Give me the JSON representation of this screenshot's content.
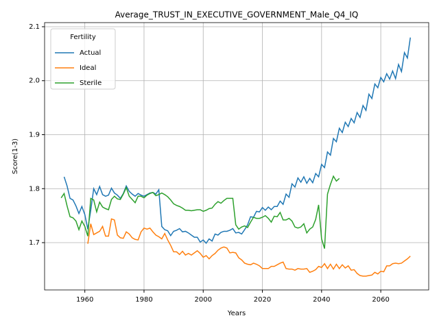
{
  "chart_data": {
    "type": "line",
    "title": "Average_TRUST_IN_EXECUTIVE_GOVERNMENT_Male_Q4_IQ",
    "x_label": "Years",
    "y_label": "Score(1-3)",
    "legend_title": "Fertility",
    "legend_loc": "upper left",
    "grid": true,
    "xlim": [
      1946.4,
      2076.2
    ],
    "ylim": [
      1.6124,
      2.1076
    ],
    "xticks": [
      1960,
      1980,
      2000,
      2020,
      2040,
      2060
    ],
    "yticks": [
      1.7,
      1.8,
      1.9,
      {
        "value": 2,
        "label": "2.0"
      },
      2.1
    ],
    "x": [
      1952,
      1953,
      1954,
      1955,
      1956,
      1957,
      1958,
      1959,
      1960,
      1961,
      1962,
      1963,
      1964,
      1965,
      1966,
      1967,
      1968,
      1969,
      1970,
      1971,
      1972,
      1973,
      1974,
      1975,
      1976,
      1977,
      1978,
      1979,
      1980,
      1981,
      1982,
      1983,
      1984,
      1985,
      1986,
      1987,
      1988,
      1989,
      1990,
      1991,
      1992,
      1993,
      1994,
      1995,
      1996,
      1997,
      1998,
      1999,
      2000,
      2001,
      2002,
      2003,
      2004,
      2005,
      2006,
      2007,
      2008,
      2009,
      2010,
      2011,
      2012,
      2013,
      2014,
      2015,
      2016,
      2017,
      2018,
      2019,
      2020,
      2021,
      2022,
      2023,
      2024,
      2025,
      2026,
      2027,
      2028,
      2029,
      2030,
      2031,
      2032,
      2033,
      2034,
      2035,
      2036,
      2037,
      2038,
      2039,
      2040,
      2041,
      2042,
      2043,
      2044,
      2045,
      2046,
      2047,
      2048,
      2049,
      2050,
      2051,
      2052,
      2053,
      2054,
      2055,
      2056,
      2057,
      2058,
      2059,
      2060,
      2061,
      2062,
      2063,
      2064,
      2065,
      2066,
      2067,
      2068,
      2069,
      2070
    ],
    "series": [
      {
        "name": "Actual",
        "color": "#1f77b4",
        "values": [
          null,
          1.822,
          1.805,
          1.782,
          1.779,
          1.768,
          1.754,
          1.767,
          1.752,
          1.725,
          1.76,
          1.8,
          1.789,
          1.804,
          1.789,
          1.786,
          1.788,
          1.801,
          1.792,
          1.788,
          1.782,
          1.791,
          1.805,
          1.795,
          1.79,
          1.786,
          1.791,
          1.788,
          1.786,
          1.789,
          1.792,
          1.793,
          1.79,
          1.798,
          1.73,
          1.724,
          1.722,
          1.713,
          1.721,
          1.723,
          1.726,
          1.72,
          1.721,
          1.718,
          1.714,
          1.71,
          1.71,
          1.701,
          1.705,
          1.699,
          1.707,
          1.703,
          1.716,
          1.714,
          1.719,
          1.721,
          1.721,
          1.723,
          1.726,
          1.718,
          1.719,
          1.716,
          1.724,
          1.733,
          1.748,
          1.747,
          1.758,
          1.757,
          1.765,
          1.76,
          1.766,
          1.761,
          1.767,
          1.767,
          1.777,
          1.771,
          1.79,
          1.784,
          1.809,
          1.803,
          1.82,
          1.812,
          1.822,
          1.81,
          1.819,
          1.811,
          1.828,
          1.822,
          1.845,
          1.839,
          1.868,
          1.862,
          1.893,
          1.887,
          1.912,
          1.904,
          1.923,
          1.915,
          1.93,
          1.922,
          1.941,
          1.932,
          1.954,
          1.945,
          1.975,
          1.967,
          1.994,
          1.987,
          2.006,
          1.998,
          2.013,
          2.003,
          2.018,
          2.004,
          2.03,
          2.017,
          2.052,
          2.042,
          2.08
        ]
      },
      {
        "name": "Ideal",
        "color": "#ff7f0e",
        "values": [
          null,
          null,
          null,
          null,
          null,
          null,
          null,
          null,
          null,
          1.698,
          1.735,
          1.715,
          1.718,
          1.721,
          1.73,
          1.712,
          1.712,
          1.744,
          1.742,
          1.714,
          1.709,
          1.708,
          1.72,
          1.716,
          1.709,
          1.706,
          1.705,
          1.72,
          1.727,
          1.725,
          1.727,
          1.72,
          1.714,
          1.711,
          1.707,
          1.717,
          1.705,
          1.695,
          1.683,
          1.683,
          1.678,
          1.684,
          1.677,
          1.68,
          1.677,
          1.681,
          1.685,
          1.68,
          1.673,
          1.676,
          1.67,
          1.676,
          1.68,
          1.686,
          1.69,
          1.692,
          1.69,
          1.681,
          1.682,
          1.681,
          1.672,
          1.668,
          1.662,
          1.66,
          1.659,
          1.662,
          1.66,
          1.657,
          1.652,
          1.652,
          1.652,
          1.656,
          1.656,
          1.659,
          1.662,
          1.664,
          1.652,
          1.651,
          1.651,
          1.649,
          1.652,
          1.651,
          1.651,
          1.652,
          1.645,
          1.647,
          1.65,
          1.656,
          1.654,
          1.661,
          1.652,
          1.66,
          1.651,
          1.66,
          1.652,
          1.659,
          1.653,
          1.657,
          1.649,
          1.65,
          1.643,
          1.639,
          1.638,
          1.638,
          1.639,
          1.64,
          1.645,
          1.642,
          1.647,
          1.646,
          1.657,
          1.657,
          1.661,
          1.662,
          1.661,
          1.662,
          1.666,
          1.67,
          1.675
        ]
      },
      {
        "name": "Sterile",
        "color": "#2ca02c",
        "values": [
          1.783,
          1.791,
          1.768,
          1.748,
          1.746,
          1.74,
          1.724,
          1.74,
          1.73,
          1.712,
          1.782,
          1.779,
          1.757,
          1.775,
          1.766,
          1.763,
          1.761,
          1.78,
          1.786,
          1.781,
          1.78,
          1.79,
          1.802,
          1.786,
          1.78,
          1.774,
          1.786,
          1.786,
          1.783,
          1.788,
          1.791,
          1.793,
          1.787,
          1.789,
          1.792,
          1.789,
          1.785,
          1.779,
          1.772,
          1.769,
          1.767,
          1.764,
          1.76,
          1.76,
          1.759,
          1.76,
          1.761,
          1.761,
          1.758,
          1.76,
          1.763,
          1.764,
          1.771,
          1.776,
          1.773,
          1.778,
          1.782,
          1.782,
          1.782,
          1.733,
          1.725,
          1.729,
          1.731,
          1.728,
          1.738,
          1.747,
          1.745,
          1.745,
          1.747,
          1.75,
          1.745,
          1.738,
          1.749,
          1.748,
          1.756,
          1.742,
          1.742,
          1.745,
          1.74,
          1.729,
          1.727,
          1.729,
          1.735,
          1.718,
          1.725,
          1.729,
          1.743,
          1.77,
          1.707,
          1.689,
          1.79,
          1.808,
          1.823,
          1.814,
          1.819,
          null,
          null,
          null,
          null,
          null,
          null,
          null,
          null,
          null,
          null,
          null,
          null,
          null,
          null,
          null,
          null,
          null,
          null,
          null,
          null,
          null,
          null,
          null,
          null
        ]
      }
    ]
  }
}
